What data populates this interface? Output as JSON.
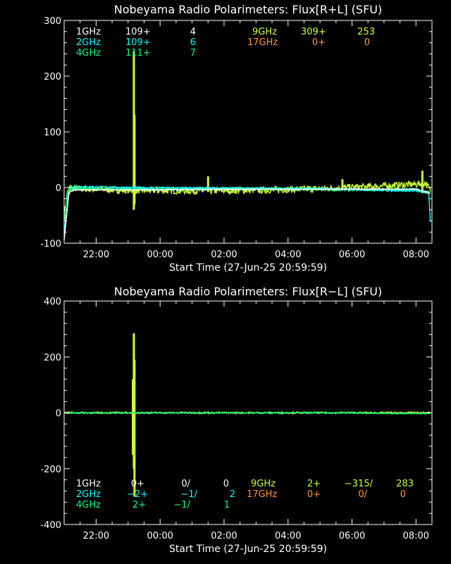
{
  "colors": {
    "background": "#000000",
    "axis": "#ffffff",
    "1GHz": "#ffffff",
    "2GHz": "#00ffff",
    "4GHz": "#00ff7f",
    "9GHz": "#ccff33",
    "17GHz": "#ff9933"
  },
  "chart_data": [
    {
      "type": "line",
      "title": "Nobeyama Radio Polarimeters: Flux[R+L] (SFU)",
      "xlabel": "Start Time (27-Jun-25 20:59:59)",
      "x_tick_labels": [
        "22:00",
        "00:00",
        "02:00",
        "04:00",
        "06:00",
        "08:00"
      ],
      "x_tick_hours": [
        1.0,
        3.0,
        5.0,
        7.0,
        9.0,
        11.0
      ],
      "xlim_hours": [
        0.0,
        11.5
      ],
      "ylim": [
        -100,
        300
      ],
      "y_ticks": [
        -100,
        0,
        100,
        200,
        300
      ],
      "legend": [
        {
          "freq": "1GHz",
          "a": "109+",
          "b": "4"
        },
        {
          "freq": "2GHz",
          "a": "109+",
          "b": "6"
        },
        {
          "freq": "4GHz",
          "a": "111+",
          "b": "7"
        },
        {
          "freq": "9GHz",
          "a": "309+",
          "b": "253"
        },
        {
          "freq": "17GHz",
          "a": "0+",
          "b": "0"
        }
      ],
      "legend_position": "top",
      "series": [
        {
          "name": "9GHz",
          "baseline": [
            [
              0.0,
              -30
            ],
            [
              0.05,
              -60
            ],
            [
              0.15,
              0
            ],
            [
              0.3,
              -2
            ],
            [
              2.0,
              -5
            ],
            [
              4.0,
              -6
            ],
            [
              6.0,
              -5
            ],
            [
              8.0,
              -2
            ],
            [
              10.0,
              3
            ],
            [
              11.0,
              6
            ],
            [
              11.3,
              8
            ],
            [
              11.45,
              -5
            ]
          ],
          "spikes": [
            [
              2.18,
              245,
              -40
            ],
            [
              2.2,
              130,
              -30
            ],
            [
              4.5,
              20,
              -8
            ],
            [
              8.7,
              15,
              -5
            ],
            [
              11.2,
              30,
              -10
            ]
          ],
          "noise": 6
        },
        {
          "name": "4GHz",
          "baseline": [
            [
              0.0,
              -60
            ],
            [
              0.1,
              -5
            ],
            [
              0.3,
              -2
            ],
            [
              3.0,
              -3
            ],
            [
              6.0,
              -2
            ],
            [
              9.0,
              -4
            ],
            [
              11.0,
              -3
            ],
            [
              11.45,
              -10
            ]
          ],
          "spikes": [],
          "noise": 2
        },
        {
          "name": "2GHz",
          "baseline": [
            [
              0.0,
              -80
            ],
            [
              0.1,
              -30
            ],
            [
              0.2,
              2
            ],
            [
              2.0,
              0
            ],
            [
              5.0,
              -1
            ],
            [
              8.0,
              -2
            ],
            [
              10.0,
              -5
            ],
            [
              11.0,
              -6
            ],
            [
              11.4,
              -10
            ],
            [
              11.45,
              -60
            ]
          ],
          "spikes": [],
          "noise": 1.5
        },
        {
          "name": "1GHz",
          "baseline": [
            [
              0.0,
              -95
            ],
            [
              0.15,
              -10
            ],
            [
              0.3,
              -4
            ],
            [
              3.0,
              -4
            ],
            [
              6.0,
              -3
            ],
            [
              9.0,
              -3
            ],
            [
              11.0,
              -3
            ],
            [
              11.45,
              -10
            ]
          ],
          "spikes": [],
          "noise": 1
        }
      ]
    },
    {
      "type": "line",
      "title": "Nobeyama Radio Polarimeters: Flux[R−L] (SFU)",
      "xlabel": "Start Time (27-Jun-25 20:59:59)",
      "x_tick_labels": [
        "22:00",
        "00:00",
        "02:00",
        "04:00",
        "06:00",
        "08:00"
      ],
      "x_tick_hours": [
        1.0,
        3.0,
        5.0,
        7.0,
        9.0,
        11.0
      ],
      "xlim_hours": [
        0.0,
        11.5
      ],
      "ylim": [
        -400,
        400
      ],
      "y_ticks": [
        -400,
        -200,
        0,
        200,
        400
      ],
      "legend": [
        {
          "freq": "1GHz",
          "a": "0+",
          "b": "0/",
          "c": "0"
        },
        {
          "freq": "2GHz",
          "a": "−2+",
          "b": "−1/",
          "c": "2"
        },
        {
          "freq": "4GHz",
          "a": "2+",
          "b": "−1/",
          "c": "1"
        },
        {
          "freq": "9GHz",
          "a": "2+",
          "b": "−315/",
          "c": "283"
        },
        {
          "freq": "17GHz",
          "a": "0+",
          "b": "0/",
          "c": "0"
        }
      ],
      "legend_position": "bottom",
      "series": [
        {
          "name": "9GHz",
          "baseline": [
            [
              0.0,
              0
            ],
            [
              11.45,
              0
            ]
          ],
          "spikes": [
            [
              2.18,
              285,
              -200
            ],
            [
              2.2,
              190,
              -300
            ],
            [
              2.15,
              120,
              -150
            ]
          ],
          "noise": 3
        },
        {
          "name": "4GHz",
          "baseline": [
            [
              0.0,
              0
            ],
            [
              9.0,
              0
            ],
            [
              10.0,
              -2
            ],
            [
              11.45,
              -3
            ]
          ],
          "spikes": [],
          "noise": 1.5
        }
      ]
    }
  ]
}
